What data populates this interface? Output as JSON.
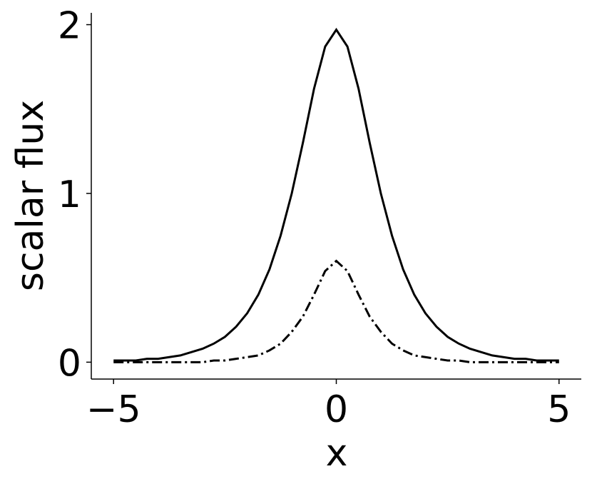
{
  "chart_data": {
    "type": "line",
    "x_label": "x",
    "y_label": "scalar flux",
    "x": [
      -5,
      -4.75,
      -4.5,
      -4.25,
      -4,
      -3.75,
      -3.5,
      -3.25,
      -3,
      -2.75,
      -2.5,
      -2.25,
      -2,
      -1.75,
      -1.5,
      -1.25,
      -1,
      -0.75,
      -0.5,
      -0.25,
      0,
      0.25,
      0.5,
      0.75,
      1,
      1.25,
      1.5,
      1.75,
      2,
      2.25,
      2.5,
      2.75,
      3,
      3.25,
      3.5,
      3.75,
      4,
      4.25,
      4.5,
      4.75,
      5
    ],
    "series": [
      {
        "color": "#000000",
        "dash": "solid",
        "values": [
          0.01,
          0.01,
          0.01,
          0.02,
          0.02,
          0.03,
          0.04,
          0.06,
          0.08,
          0.11,
          0.15,
          0.21,
          0.29,
          0.4,
          0.55,
          0.75,
          1.0,
          1.3,
          1.62,
          1.87,
          1.97,
          1.87,
          1.62,
          1.3,
          1.0,
          0.75,
          0.55,
          0.4,
          0.29,
          0.21,
          0.15,
          0.11,
          0.08,
          0.06,
          0.04,
          0.03,
          0.02,
          0.02,
          0.01,
          0.01,
          0.01
        ]
      },
      {
        "color": "#000000",
        "dash": "dashdot",
        "values": [
          0,
          0,
          0,
          0,
          0,
          0,
          0,
          0,
          0,
          0.01,
          0.01,
          0.02,
          0.03,
          0.04,
          0.07,
          0.11,
          0.18,
          0.27,
          0.4,
          0.54,
          0.6,
          0.54,
          0.4,
          0.27,
          0.18,
          0.11,
          0.07,
          0.04,
          0.03,
          0.02,
          0.01,
          0.01,
          0,
          0,
          0,
          0,
          0,
          0,
          0,
          0,
          0
        ]
      }
    ],
    "xlim": [
      -5.5,
      5.5
    ],
    "xticks": [
      {
        "value": -5,
        "label": "−5"
      },
      0,
      5
    ],
    "ylim": [
      -0.1,
      2.07
    ],
    "yticks": [
      0,
      1,
      2
    ],
    "grid": false
  }
}
